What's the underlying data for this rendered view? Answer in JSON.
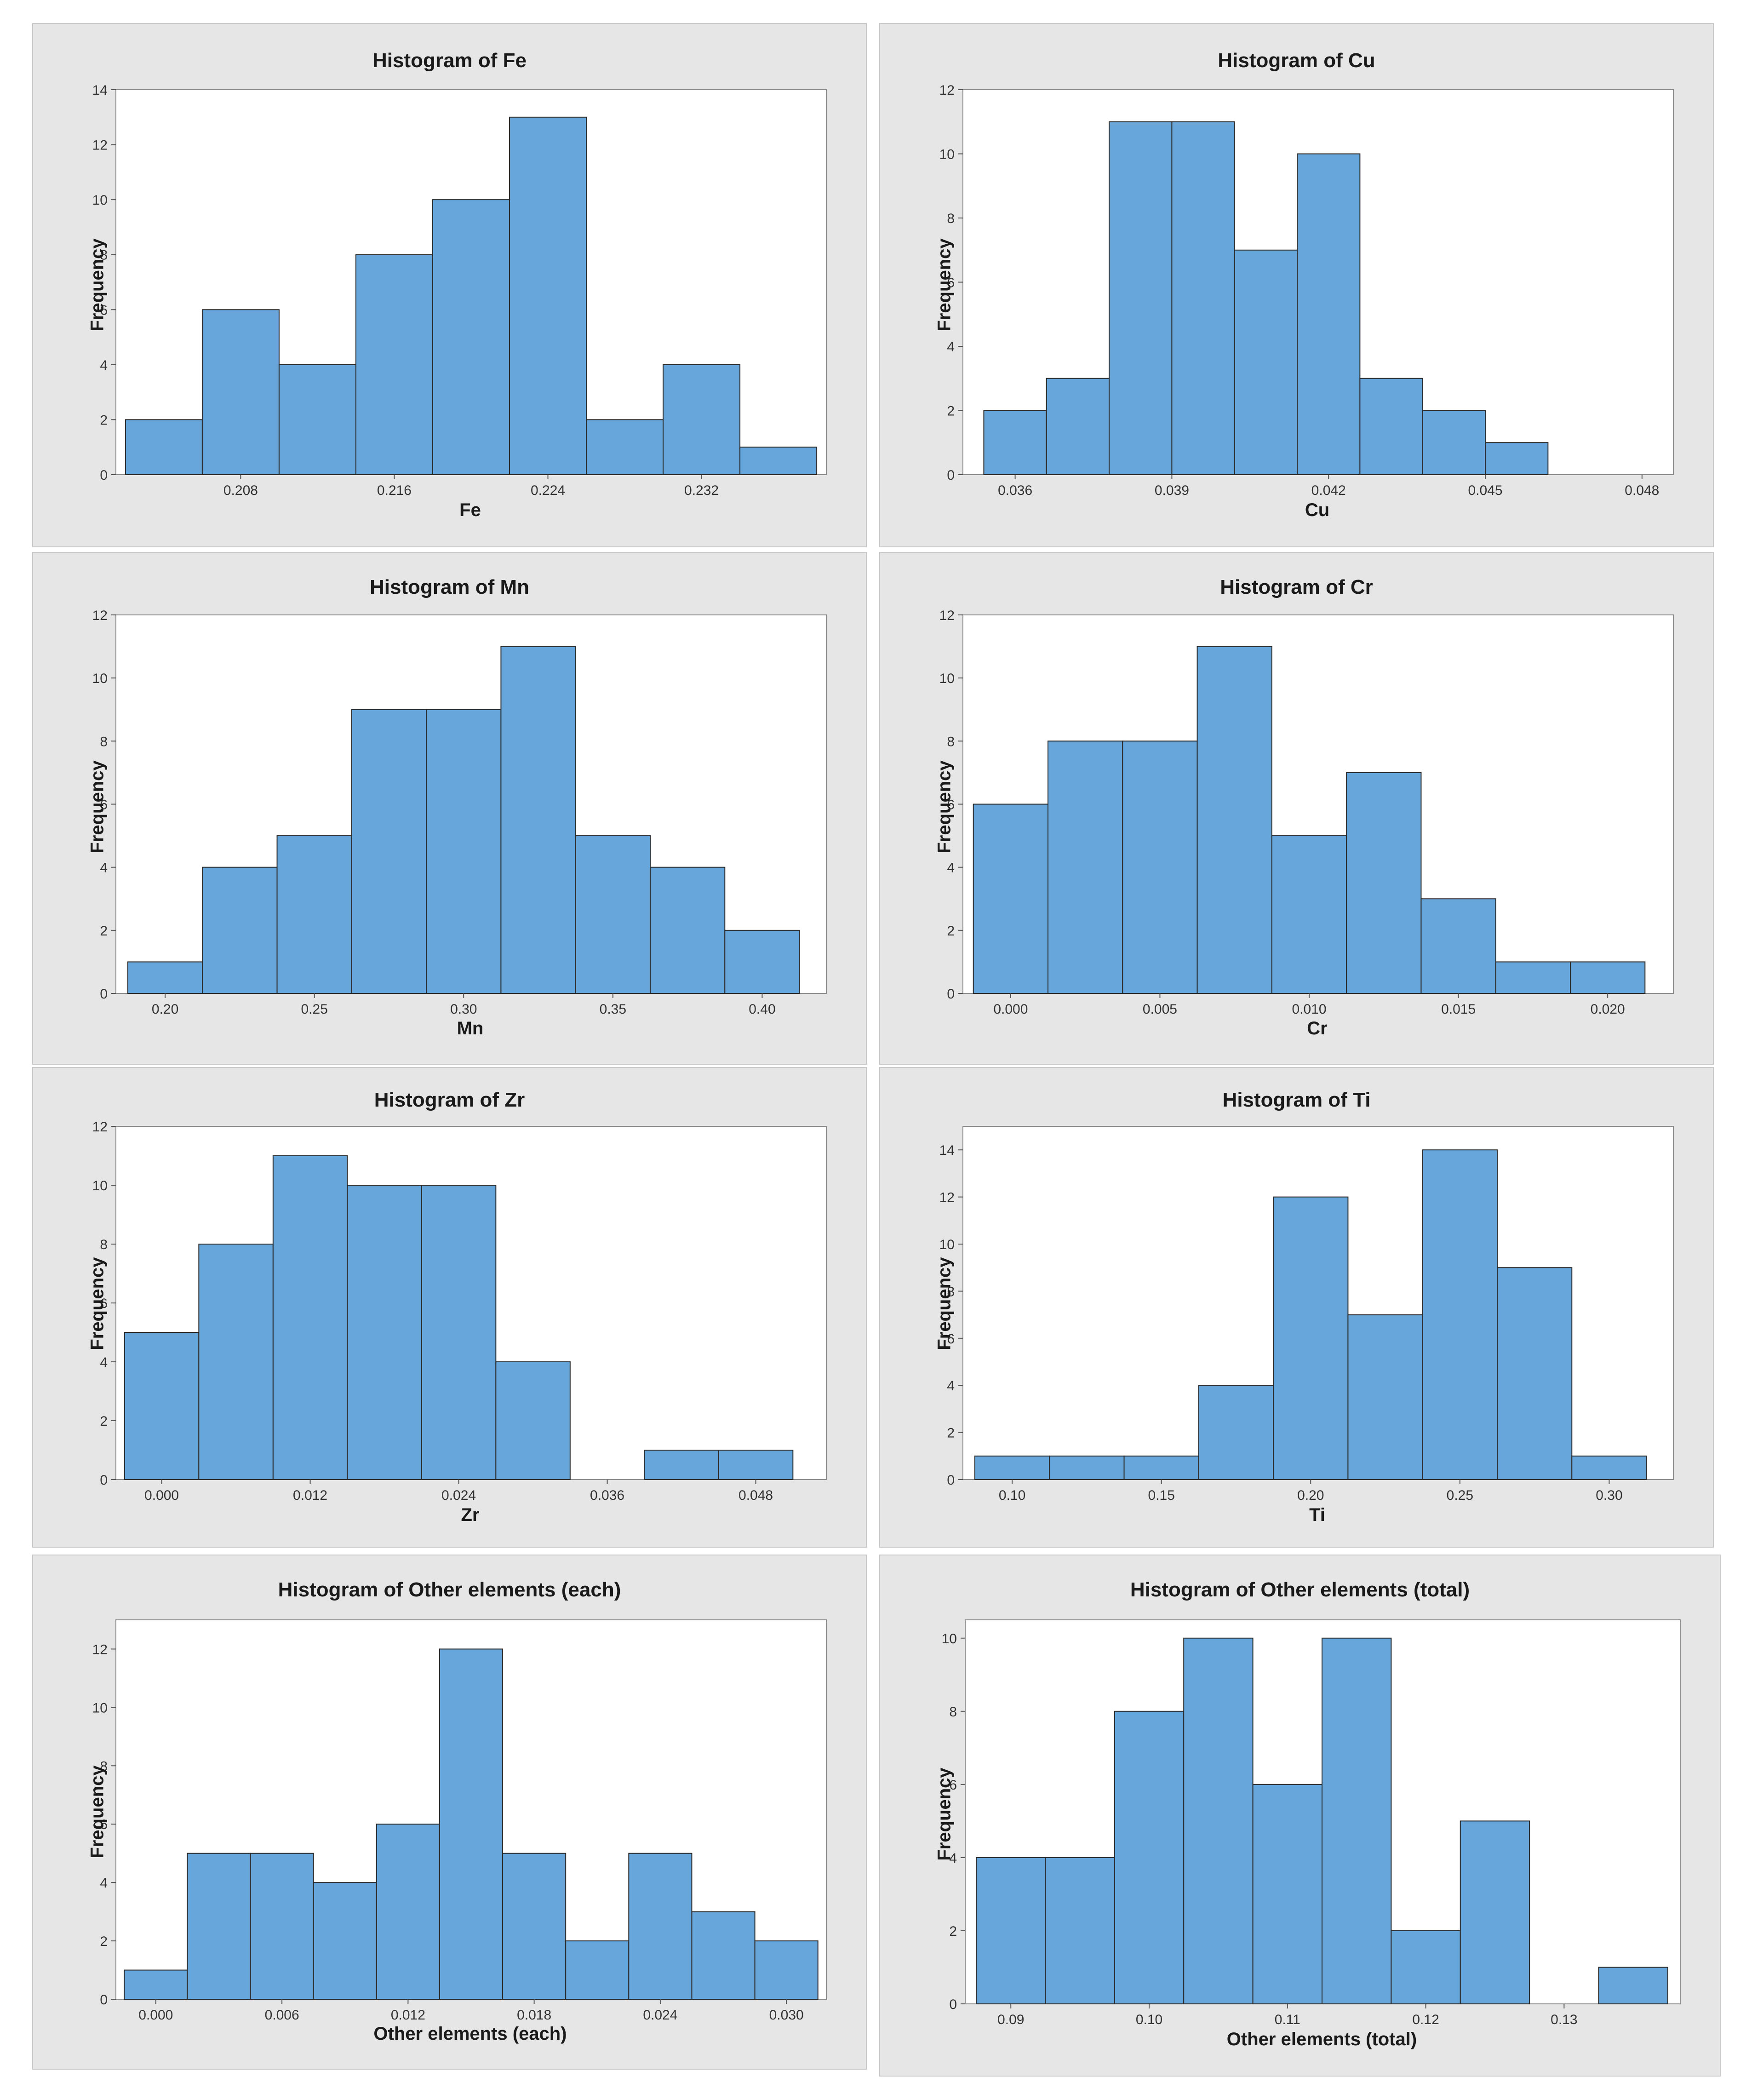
{
  "chart_data": [
    {
      "type": "bar",
      "title": "Histogram of Fe",
      "xlabel": "Fe",
      "ylabel": "Frequency",
      "bin_start": 0.202,
      "bin_width": 0.004,
      "values": [
        2,
        6,
        4,
        8,
        10,
        13,
        2,
        4,
        1
      ],
      "xlim": [
        0.2015,
        0.2385
      ],
      "ylim": [
        0,
        14
      ],
      "yticks": [
        0,
        2,
        4,
        6,
        8,
        10,
        12,
        14
      ],
      "xticks": [
        0.208,
        0.216,
        0.224,
        0.232
      ],
      "xtick_labels": [
        "0.208",
        "0.216",
        "0.224",
        "0.232"
      ]
    },
    {
      "type": "bar",
      "title": "Histogram of Cu",
      "xlabel": "Cu",
      "ylabel": "Frequency",
      "bin_start": 0.0354,
      "bin_width": 0.0012,
      "values": [
        2,
        3,
        11,
        11,
        7,
        10,
        3,
        2,
        1
      ],
      "xlim": [
        0.035,
        0.0486
      ],
      "ylim": [
        0,
        12
      ],
      "yticks": [
        0,
        2,
        4,
        6,
        8,
        10,
        12
      ],
      "xticks": [
        0.036,
        0.039,
        0.042,
        0.045,
        0.048
      ],
      "xtick_labels": [
        "0.036",
        "0.039",
        "0.042",
        "0.045",
        "0.048"
      ]
    },
    {
      "type": "bar",
      "title": "Histogram of Mn",
      "xlabel": "Mn",
      "ylabel": "Frequency",
      "bin_start": 0.1875,
      "bin_width": 0.025,
      "values": [
        1,
        4,
        5,
        9,
        9,
        11,
        5,
        4,
        2
      ],
      "xlim": [
        0.1835,
        0.4215
      ],
      "ylim": [
        0,
        12
      ],
      "yticks": [
        0,
        2,
        4,
        6,
        8,
        10,
        12
      ],
      "xticks": [
        0.2,
        0.25,
        0.3,
        0.35,
        0.4
      ],
      "xtick_labels": [
        "0.20",
        "0.25",
        "0.30",
        "0.35",
        "0.40"
      ]
    },
    {
      "type": "bar",
      "title": "Histogram of Cr",
      "xlabel": "Cr",
      "ylabel": "Frequency",
      "bin_start": -0.00125,
      "bin_width": 0.0025,
      "values": [
        6,
        8,
        8,
        11,
        5,
        7,
        3,
        1,
        1
      ],
      "xlim": [
        -0.0016,
        0.0222
      ],
      "ylim": [
        0,
        12
      ],
      "yticks": [
        0,
        2,
        4,
        6,
        8,
        10,
        12
      ],
      "xticks": [
        0,
        0.005,
        0.01,
        0.015,
        0.02
      ],
      "xtick_labels": [
        "0.000",
        "0.005",
        "0.010",
        "0.015",
        "0.020"
      ]
    },
    {
      "type": "bar",
      "title": "Histogram of Zr",
      "xlabel": "Zr",
      "ylabel": "Frequency",
      "bin_start": -0.003,
      "bin_width": 0.006,
      "values": [
        5,
        8,
        11,
        10,
        10,
        4,
        0,
        1,
        1
      ],
      "xlim": [
        -0.0037,
        0.0537
      ],
      "ylim": [
        0,
        12
      ],
      "yticks": [
        0,
        2,
        4,
        6,
        8,
        10,
        12
      ],
      "xticks": [
        0,
        0.012,
        0.024,
        0.036,
        0.048
      ],
      "xtick_labels": [
        "0.000",
        "0.012",
        "0.024",
        "0.036",
        "0.048"
      ]
    },
    {
      "type": "bar",
      "title": "Histogram of Ti",
      "xlabel": "Ti",
      "ylabel": "Frequency",
      "bin_start": 0.0875,
      "bin_width": 0.025,
      "values": [
        1,
        1,
        1,
        4,
        12,
        7,
        14,
        9,
        1
      ],
      "xlim": [
        0.0835,
        0.3215
      ],
      "ylim": [
        0,
        15
      ],
      "yticks": [
        0,
        2,
        4,
        6,
        8,
        10,
        12,
        14
      ],
      "xticks": [
        0.1,
        0.15,
        0.2,
        0.25,
        0.3
      ],
      "xtick_labels": [
        "0.10",
        "0.15",
        "0.20",
        "0.25",
        "0.30"
      ]
    },
    {
      "type": "bar",
      "title": "Histogram of Other elements (each)",
      "xlabel": "Other elements (each)",
      "ylabel": "Frequency",
      "bin_start": -0.0015,
      "bin_width": 0.003,
      "values": [
        1,
        5,
        5,
        4,
        6,
        12,
        5,
        2,
        5,
        3,
        2
      ],
      "xlim": [
        -0.0019,
        0.0319
      ],
      "ylim": [
        0,
        13
      ],
      "yticks": [
        0,
        2,
        4,
        6,
        8,
        10,
        12
      ],
      "xticks": [
        0,
        0.006,
        0.012,
        0.018,
        0.024,
        0.03
      ],
      "xtick_labels": [
        "0.000",
        "0.006",
        "0.012",
        "0.018",
        "0.024",
        "0.030"
      ]
    },
    {
      "type": "bar",
      "title": "Histogram of Other elements (total)",
      "xlabel": "Other elements (total)",
      "ylabel": "Frequency",
      "bin_start": 0.0875,
      "bin_width": 0.005,
      "values": [
        4,
        4,
        8,
        10,
        6,
        10,
        2,
        5,
        0,
        1
      ],
      "xlim": [
        0.0867,
        0.1384
      ],
      "ylim": [
        0,
        10.5
      ],
      "yticks": [
        0,
        2,
        4,
        6,
        8,
        10
      ],
      "xticks": [
        0.09,
        0.1,
        0.11,
        0.12,
        0.13
      ],
      "xtick_labels": [
        "0.09",
        "0.10",
        "0.11",
        "0.12",
        "0.13"
      ]
    }
  ]
}
